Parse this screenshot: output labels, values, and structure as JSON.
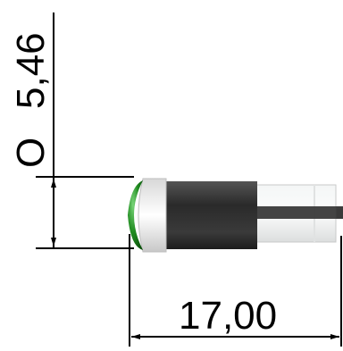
{
  "dimensions": {
    "diameter_symbol": "O",
    "diameter_value": "5,46",
    "length_value": "17,00"
  },
  "colors": {
    "lens": "#1f8a1f",
    "lens_highlight": "#6fd36f",
    "collar": "#e6e6e6",
    "body_dark": "#2e2e2e",
    "sleeve": "#eef0f0",
    "pin": "#3a3a3a",
    "line": "#000000"
  }
}
